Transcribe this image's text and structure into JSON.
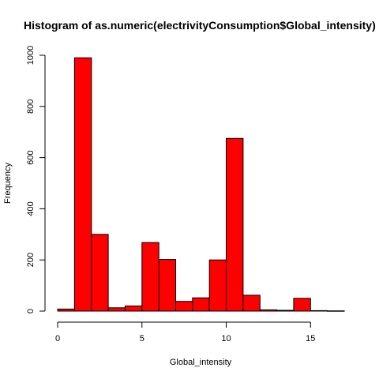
{
  "chart_data": {
    "type": "bar",
    "title": "Histogram of as.numeric(electrivityConsumption$Global_intensity)",
    "xlabel": "Global_intensity",
    "ylabel": "Frequency",
    "bin_width": 1,
    "bin_starts": [
      0,
      1,
      2,
      3,
      4,
      5,
      6,
      7,
      8,
      9,
      10,
      11,
      12,
      13,
      14,
      15,
      16
    ],
    "values": [
      8,
      990,
      300,
      13,
      20,
      268,
      202,
      38,
      52,
      200,
      675,
      62,
      5,
      3,
      50,
      2,
      1
    ],
    "xlim": [
      0,
      17
    ],
    "ylim": [
      0,
      1000
    ],
    "x_ticks": [
      0,
      5,
      10,
      15
    ],
    "y_ticks": [
      0,
      200,
      400,
      600,
      800,
      1000
    ],
    "grid": false,
    "legend": "none",
    "bar_color": "#ff0000",
    "bar_border_color": "#000000"
  }
}
